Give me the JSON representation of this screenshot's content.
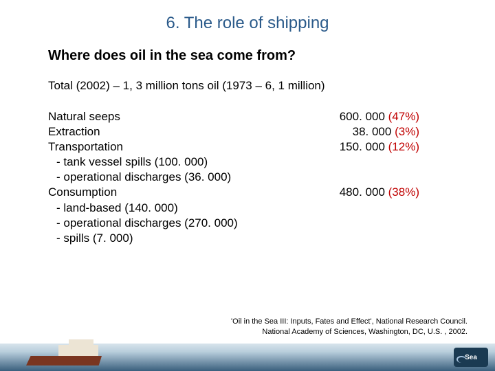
{
  "title": "6. The role of shipping",
  "subtitle": "Where does oil in the sea come from?",
  "total_line": "Total (2002) – 1, 3 million tons oil (1973 – 6, 1 million)",
  "rows": {
    "r0": {
      "label": "Natural seeps",
      "value": "600. 000",
      "pct": "(47%)"
    },
    "r1": {
      "label": "Extraction",
      "value": "38. 000",
      "pct": "(3%)"
    },
    "r2": {
      "label": "Transportation",
      "value": "150. 000",
      "pct": "(12%)"
    },
    "r3": {
      "label": "- tank vessel spills (100. 000)"
    },
    "r4": {
      "label": "- operational discharges (36. 000)"
    },
    "r5": {
      "label": "Consumption",
      "value": "480. 000",
      "pct": "(38%)"
    },
    "r6": {
      "label": "- land-based (140. 000)"
    },
    "r7": {
      "label": "- operational discharges (270. 000)"
    },
    "r8": {
      "label": "- spills (7. 000)"
    }
  },
  "citation": {
    "line1": "'Oil in the Sea III: Inputs, Fates and Effect', National Research Council.",
    "line2": "National Academy of Sciences, Washington, DC, U.S. , 2002."
  },
  "logo_text": "Sea",
  "colors": {
    "title": "#2a5a8a",
    "pct": "#c00000",
    "footer_top": "#d8e4ec",
    "footer_bottom": "#3a5f7d",
    "hull": "#7a3520",
    "deck": "#ece4d4",
    "logo_bg": "#1a3a52"
  },
  "font": {
    "title_size": 24,
    "subtitle_size": 20,
    "body_size": 17,
    "citation_size": 11
  }
}
